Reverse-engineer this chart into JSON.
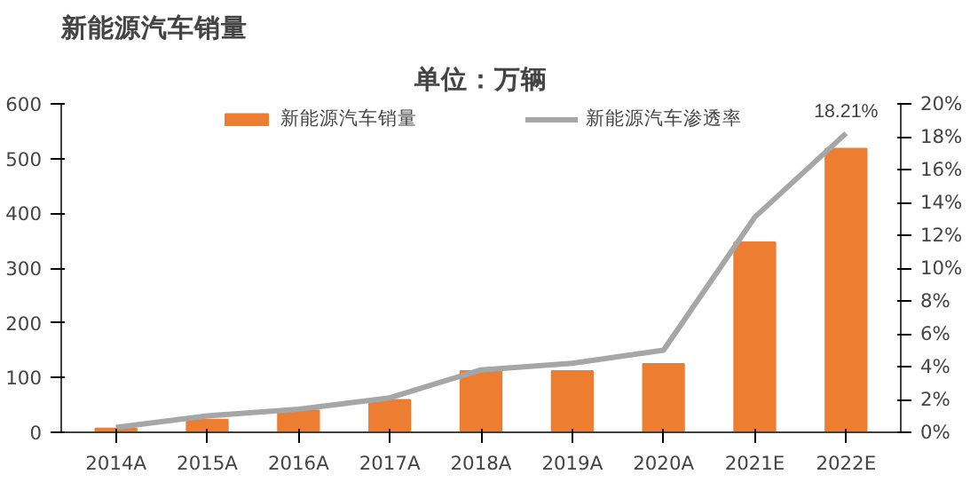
{
  "chart_data": {
    "type": "bar",
    "title": "新能源汽车销量",
    "subtitle": "单位：万辆",
    "categories": [
      "2014A",
      "2015A",
      "2016A",
      "2017A",
      "2018A",
      "2019A",
      "2020A",
      "2021E",
      "2022E"
    ],
    "series": [
      {
        "name": "新能源汽车销量",
        "color": "#ed7d31",
        "values": [
          7,
          23,
          40,
          59,
          112,
          112,
          125,
          347,
          518
        ]
      },
      {
        "name": "新能源汽车渗透率",
        "type": "line",
        "axis": "y2",
        "color": "#a6a6a6",
        "values": [
          0.3,
          1.0,
          1.4,
          2.1,
          3.8,
          4.2,
          5.0,
          13.1,
          18.21
        ],
        "value_labels": [
          null,
          null,
          null,
          null,
          null,
          null,
          null,
          null,
          "18.21%"
        ]
      }
    ],
    "ylim": [
      0,
      600
    ],
    "yticks": [
      0,
      100,
      200,
      300,
      400,
      500,
      600
    ],
    "y2lim": [
      0,
      20
    ],
    "y2ticks": [
      {
        "value": 0,
        "label": "0%"
      },
      {
        "value": 2,
        "label": "2%"
      },
      {
        "value": 4,
        "label": "4%"
      },
      {
        "value": 6,
        "label": "6%"
      },
      {
        "value": 8,
        "label": "8%"
      },
      {
        "value": 10,
        "label": "10%"
      },
      {
        "value": 12,
        "label": "12%"
      },
      {
        "value": 14,
        "label": "14%"
      },
      {
        "value": 16,
        "label": "16%"
      },
      {
        "value": 18,
        "label": "18%"
      },
      {
        "value": 20,
        "label": "20%"
      }
    ],
    "grid": false,
    "legend": "top",
    "marker": "none",
    "line_style": "solid"
  }
}
